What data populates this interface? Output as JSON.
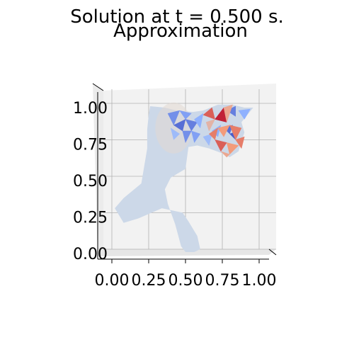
{
  "figure": {
    "title": "Solution at t = 0.500 s.",
    "subtitle": "Approximation"
  },
  "chart_data": {
    "type": "surface3d",
    "title": "Solution at t = 0.500 s.",
    "subtitle": "Approximation",
    "xlabel": "",
    "ylabel": "",
    "xlim": [
      0.0,
      1.0
    ],
    "ylim": [
      0.0,
      1.0
    ],
    "x_ticks": [
      "0.00",
      "0.25",
      "0.50",
      "0.75",
      "1.00"
    ],
    "y_ticks": [
      "0.00",
      "0.25",
      "0.50",
      "0.75",
      "1.00"
    ],
    "grid": true,
    "colormap": "coolwarm",
    "colors": {
      "base": "#ccd8e8",
      "cold": "#3b4cc0",
      "cool": "#8fb1fe",
      "warm": "#f39b7a",
      "hot": "#b40426",
      "pane": "#f2f2f2",
      "grid": "#b0b0b0"
    },
    "domain_polygon": [
      [
        0.26,
        1.01
      ],
      [
        0.36,
        1.0
      ],
      [
        0.44,
        0.98
      ],
      [
        0.55,
        0.97
      ],
      [
        0.62,
        0.98
      ],
      [
        0.72,
        1.02
      ],
      [
        0.82,
        1.02
      ],
      [
        0.9,
        1.0
      ],
      [
        0.96,
        1.0
      ],
      [
        0.88,
        0.9
      ],
      [
        0.9,
        0.83
      ],
      [
        0.86,
        0.7
      ],
      [
        0.8,
        0.66
      ],
      [
        0.74,
        0.69
      ],
      [
        0.66,
        0.72
      ],
      [
        0.58,
        0.74
      ],
      [
        0.52,
        0.73
      ],
      [
        0.5,
        0.58
      ],
      [
        0.4,
        0.52
      ],
      [
        0.36,
        0.44
      ],
      [
        0.38,
        0.34
      ],
      [
        0.43,
        0.2
      ],
      [
        0.47,
        0.05
      ],
      [
        0.5,
        0.01
      ],
      [
        0.56,
        0.01
      ],
      [
        0.6,
        0.03
      ],
      [
        0.58,
        0.12
      ],
      [
        0.52,
        0.22
      ],
      [
        0.48,
        0.28
      ],
      [
        0.34,
        0.31
      ],
      [
        0.18,
        0.24
      ],
      [
        0.08,
        0.21
      ],
      [
        0.02,
        0.31
      ],
      [
        0.08,
        0.38
      ],
      [
        0.2,
        0.48
      ],
      [
        0.22,
        0.6
      ],
      [
        0.24,
        0.72
      ],
      [
        0.24,
        0.85
      ],
      [
        0.25,
        0.95
      ]
    ],
    "hot_triangles": [
      {
        "pts": [
          [
            0.62,
            0.95
          ],
          [
            0.68,
            1.0
          ],
          [
            0.7,
            0.92
          ]
        ],
        "value": 0.85
      },
      {
        "pts": [
          [
            0.7,
            0.92
          ],
          [
            0.76,
            1.0
          ],
          [
            0.78,
            0.9
          ]
        ],
        "value": 0.95
      },
      {
        "pts": [
          [
            0.76,
            1.0
          ],
          [
            0.82,
            1.02
          ],
          [
            0.78,
            0.9
          ]
        ],
        "value": 0.7
      },
      {
        "pts": [
          [
            0.66,
            0.82
          ],
          [
            0.72,
            0.86
          ],
          [
            0.7,
            0.78
          ]
        ],
        "value": 0.8
      },
      {
        "pts": [
          [
            0.72,
            0.86
          ],
          [
            0.8,
            0.88
          ],
          [
            0.76,
            0.8
          ]
        ],
        "value": 0.75
      },
      {
        "pts": [
          [
            0.8,
            0.88
          ],
          [
            0.88,
            0.86
          ],
          [
            0.84,
            0.78
          ]
        ],
        "value": 0.8
      },
      {
        "pts": [
          [
            0.7,
            0.78
          ],
          [
            0.78,
            0.76
          ],
          [
            0.74,
            0.7
          ]
        ],
        "value": 0.85
      },
      {
        "pts": [
          [
            0.78,
            0.76
          ],
          [
            0.86,
            0.74
          ],
          [
            0.8,
            0.68
          ]
        ],
        "value": 0.75
      },
      {
        "pts": [
          [
            0.74,
            0.7
          ],
          [
            0.8,
            0.68
          ],
          [
            0.78,
            0.66
          ]
        ],
        "value": 0.7
      },
      {
        "pts": [
          [
            0.84,
            0.78
          ],
          [
            0.9,
            0.8
          ],
          [
            0.88,
            0.72
          ]
        ],
        "value": 0.8
      },
      {
        "pts": [
          [
            0.64,
            0.9
          ],
          [
            0.7,
            0.92
          ],
          [
            0.66,
            0.84
          ]
        ],
        "value": 0.65
      }
    ],
    "cold_triangles": [
      {
        "pts": [
          [
            0.38,
            0.96
          ],
          [
            0.46,
            0.98
          ],
          [
            0.42,
            0.88
          ]
        ],
        "value": 0.2
      },
      {
        "pts": [
          [
            0.42,
            0.88
          ],
          [
            0.5,
            0.92
          ],
          [
            0.48,
            0.84
          ]
        ],
        "value": 0.1
      },
      {
        "pts": [
          [
            0.46,
            0.98
          ],
          [
            0.54,
            0.96
          ],
          [
            0.5,
            0.92
          ]
        ],
        "value": 0.25
      },
      {
        "pts": [
          [
            0.5,
            0.92
          ],
          [
            0.58,
            0.9
          ],
          [
            0.54,
            0.84
          ]
        ],
        "value": 0.15
      },
      {
        "pts": [
          [
            0.48,
            0.84
          ],
          [
            0.54,
            0.84
          ],
          [
            0.5,
            0.76
          ]
        ],
        "value": 0.2
      },
      {
        "pts": [
          [
            0.54,
            0.84
          ],
          [
            0.6,
            0.82
          ],
          [
            0.56,
            0.76
          ]
        ],
        "value": 0.25
      },
      {
        "pts": [
          [
            0.56,
            0.92
          ],
          [
            0.62,
            0.96
          ],
          [
            0.6,
            0.86
          ]
        ],
        "value": 0.3
      },
      {
        "pts": [
          [
            0.78,
            0.98
          ],
          [
            0.84,
            1.01
          ],
          [
            0.84,
            0.94
          ]
        ],
        "value": 0.15
      },
      {
        "pts": [
          [
            0.86,
            0.98
          ],
          [
            0.94,
            0.99
          ],
          [
            0.9,
            0.92
          ]
        ],
        "value": 0.3
      },
      {
        "pts": [
          [
            0.76,
            0.86
          ],
          [
            0.82,
            0.88
          ],
          [
            0.8,
            0.82
          ]
        ],
        "value": 0.1
      },
      {
        "pts": [
          [
            0.8,
            0.82
          ],
          [
            0.86,
            0.84
          ],
          [
            0.84,
            0.78
          ]
        ],
        "value": 0.05
      },
      {
        "pts": [
          [
            0.68,
            0.84
          ],
          [
            0.74,
            0.88
          ],
          [
            0.72,
            0.8
          ]
        ],
        "value": 0.3
      },
      {
        "pts": [
          [
            0.62,
            0.8
          ],
          [
            0.68,
            0.82
          ],
          [
            0.66,
            0.74
          ]
        ],
        "value": 0.35
      },
      {
        "pts": [
          [
            0.4,
            0.86
          ],
          [
            0.46,
            0.82
          ],
          [
            0.42,
            0.78
          ]
        ],
        "value": 0.35
      }
    ]
  }
}
